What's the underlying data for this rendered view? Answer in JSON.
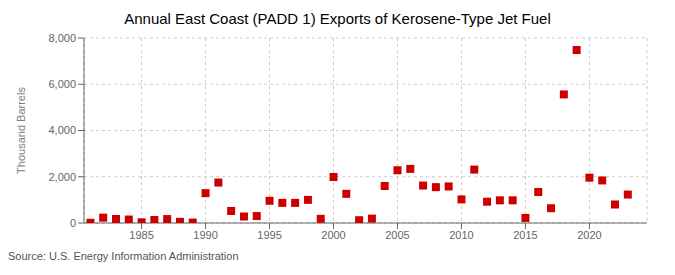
{
  "chart_data": {
    "type": "scatter",
    "title": "Annual East Coast (PADD 1) Exports of Kerosene-Type Jet Fuel",
    "ylabel": "Thousand Barrels",
    "annotations": [
      "Source: U.S. Energy Information Administration"
    ],
    "x": [
      1981,
      1982,
      1983,
      1984,
      1985,
      1986,
      1987,
      1988,
      1989,
      1990,
      1991,
      1992,
      1993,
      1994,
      1995,
      1996,
      1997,
      1998,
      1999,
      2000,
      2001,
      2002,
      2003,
      2004,
      2005,
      2006,
      2007,
      2008,
      2009,
      2010,
      2011,
      2012,
      2013,
      2014,
      2015,
      2016,
      2017,
      2018,
      2019,
      2020,
      2021,
      2022,
      2023
    ],
    "values": [
      10,
      230,
      175,
      150,
      30,
      130,
      170,
      50,
      20,
      1290,
      1750,
      520,
      280,
      300,
      960,
      870,
      870,
      1000,
      180,
      1990,
      1260,
      120,
      190,
      1600,
      2280,
      2340,
      1620,
      1550,
      1580,
      1020,
      2310,
      920,
      980,
      980,
      220,
      1340,
      640,
      5560,
      7480,
      1960,
      1840,
      800,
      1230
    ],
    "color": "#cc0000",
    "marker": "square",
    "xlim": [
      1980.5,
      2024.5
    ],
    "ylim": [
      0,
      8000
    ],
    "xticks": [
      1985,
      1990,
      1995,
      2000,
      2005,
      2010,
      2015,
      2020
    ],
    "yticks": [
      0,
      {
        "value": 2000,
        "label": "2,000"
      },
      {
        "value": 4000,
        "label": "4,000"
      },
      {
        "value": 6000,
        "label": "6,000"
      },
      {
        "value": 8000,
        "label": "8,000"
      }
    ],
    "grid": true
  }
}
